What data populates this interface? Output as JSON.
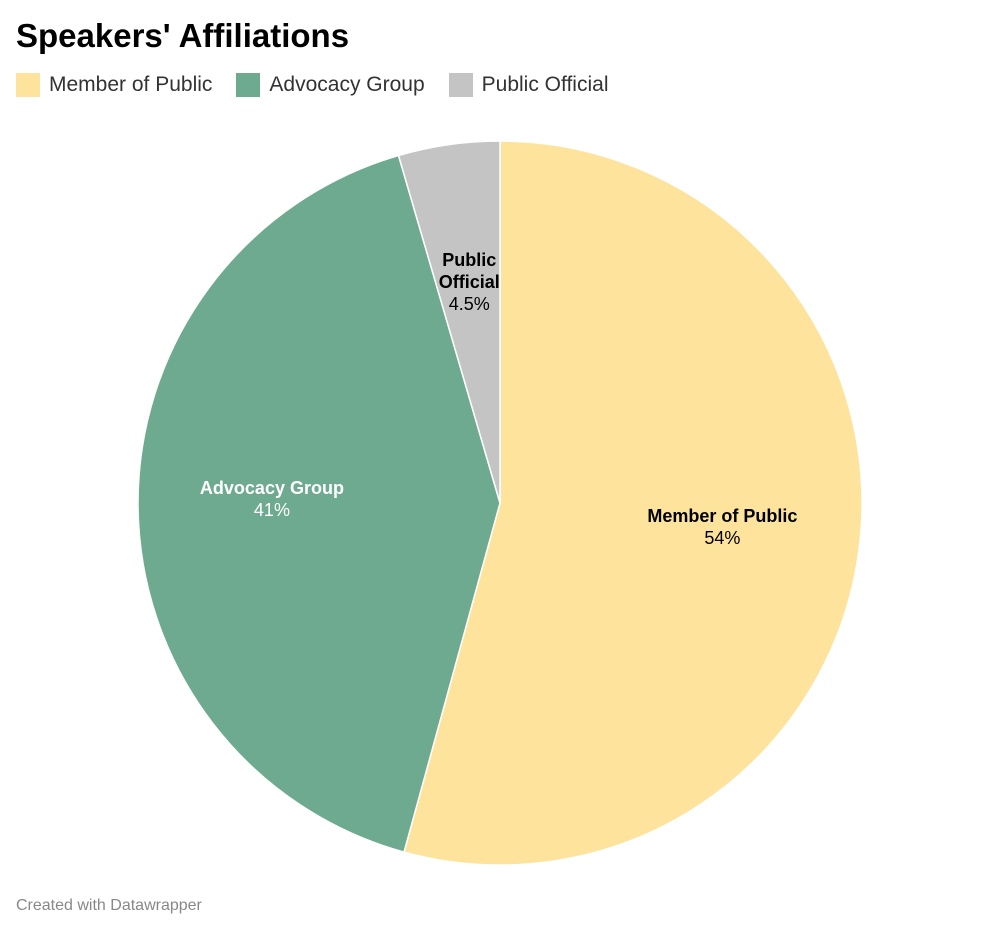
{
  "chart_data": {
    "type": "pie",
    "title": "Speakers' Affiliations",
    "legend_position": "top-left",
    "start_angle_deg": 0,
    "direction": "clockwise",
    "slices": [
      {
        "label": "Member of Public",
        "value": 54,
        "value_label": "54%",
        "color": "#fde39c",
        "label_color": "#000000",
        "label_lines": [
          "Member of Public"
        ]
      },
      {
        "label": "Advocacy Group",
        "value": 41,
        "value_label": "41%",
        "color": "#6daa90",
        "label_color": "#ffffff",
        "label_lines": [
          "Advocacy Group"
        ]
      },
      {
        "label": "Public Official",
        "value": 4.5,
        "value_label": "4.5%",
        "color": "#c4c4c4",
        "label_color": "#000000",
        "label_lines": [
          "Public",
          "Official"
        ]
      }
    ]
  },
  "footer": {
    "credit": "Created with Datawrapper"
  }
}
